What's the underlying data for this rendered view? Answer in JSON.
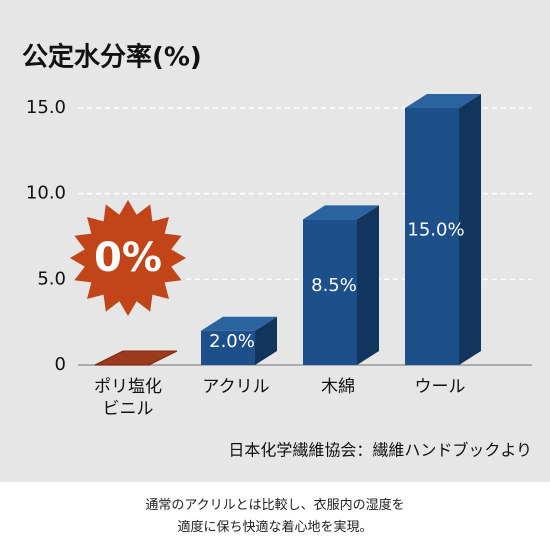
{
  "chart_data": {
    "type": "bar3d",
    "title": "公定水分率(%)",
    "categories": [
      "ポリ塩化ビニル",
      "アクリル",
      "木綿",
      "ウール"
    ],
    "values": [
      0,
      2.0,
      8.5,
      15.0
    ],
    "value_labels": [
      "0%",
      "2.0%",
      "8.5%",
      "15.0%"
    ],
    "color": "#1d4f8a",
    "highlight_color": "#c24419",
    "ylim": [
      0,
      15
    ],
    "yticks": [
      0,
      {
        "value": 5,
        "label": "5.0"
      },
      {
        "value": 10,
        "label": "10.0"
      },
      {
        "value": 15,
        "label": "15.0"
      }
    ],
    "grid": true,
    "source": "日本化学繊維協会：繊維ハンドブックより",
    "caption": [
      "通常のアクリルとは比較し、衣服内の湿度を",
      "適度に保ち快適な着心地を実現。"
    ]
  }
}
